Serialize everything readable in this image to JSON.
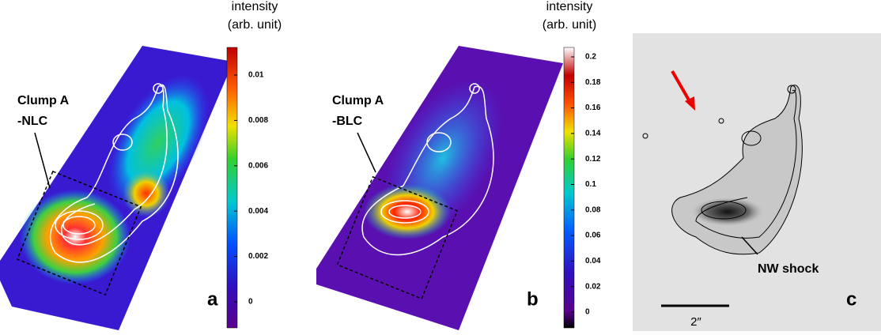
{
  "panels": [
    {
      "label": "a",
      "annotation": [
        "Clump A",
        "-NLC"
      ],
      "colorbar": {
        "title": [
          "intensity",
          "(arb. unit)"
        ],
        "ticks": [
          0.01,
          0.008,
          0.006,
          0.004,
          0.002,
          0
        ]
      }
    },
    {
      "label": "b",
      "annotation": [
        "Clump A",
        "-BLC"
      ],
      "colorbar": {
        "title": [
          "intensity",
          "(arb. unit)"
        ],
        "ticks": [
          0.2,
          0.18,
          0.16,
          0.14,
          0.12,
          0.1,
          0.08,
          0.06,
          0.04,
          0.02,
          0
        ]
      }
    },
    {
      "label": "c",
      "annotation": [
        "NW shock"
      ],
      "scale_bar": "2″"
    }
  ]
}
